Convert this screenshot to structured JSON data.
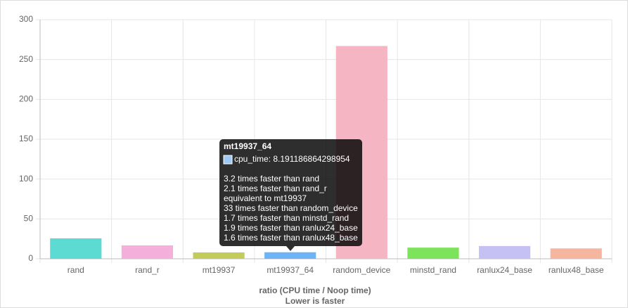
{
  "chart_data": {
    "type": "bar",
    "x_label": "ratio (CPU time / Noop time)",
    "subtitle": "Lower is faster",
    "categories": [
      "rand",
      "rand_r",
      "mt19937",
      "mt19937_64",
      "random_device",
      "minstd_rand",
      "ranlux24_base",
      "ranlux48_base"
    ],
    "series": [
      {
        "name": "cpu_time",
        "values": [
          25.6,
          16.8,
          8,
          8.191186864298954,
          267,
          14,
          16,
          13
        ],
        "colors": [
          "#5cdbd3",
          "#f4afdb",
          "#c3cc5a",
          "#6cb4f6",
          "#f5b5c3",
          "#7de35a",
          "#c6c1f5",
          "#f6b59e"
        ]
      }
    ],
    "ylim": [
      0,
      300
    ],
    "yticks": [
      0,
      50,
      100,
      150,
      200,
      250,
      300
    ],
    "grid": true,
    "tooltip": {
      "title": "mt19937_64",
      "label": "cpu_time: 8.191186864298954",
      "lines": [
        "3.2 times faster than rand",
        "2.1 times faster than rand_r",
        "equivalent to mt19937",
        "33 times faster than random_device",
        "1.7 times faster than minstd_rand",
        "1.9 times faster than ranlux24_base",
        "1.6 times faster than ranlux48_base"
      ]
    }
  }
}
